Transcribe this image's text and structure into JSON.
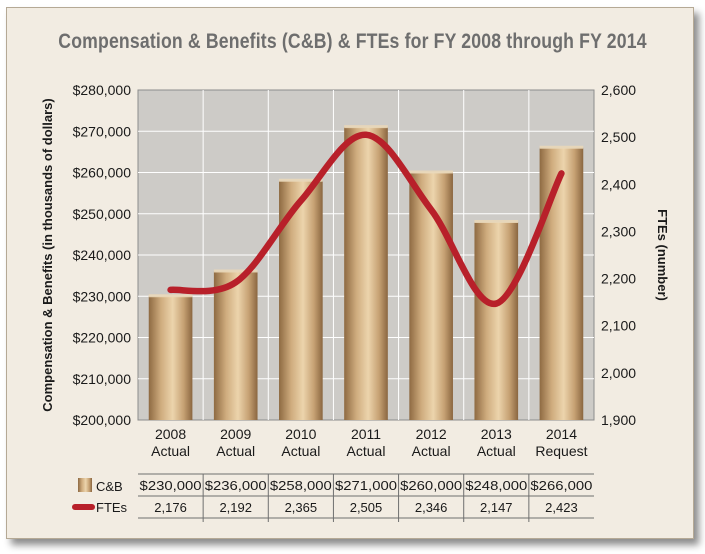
{
  "chart_data": {
    "type": "bar+line",
    "title": "Compensation & Benefits (C&B) & FTEs for FY 2008 through FY 2014",
    "ylabel": "Compensation & Benefits (in thousands of dollars)",
    "y2label": "FTEs (number)",
    "categories": [
      [
        "2008",
        "Actual"
      ],
      [
        "2009",
        "Actual"
      ],
      [
        "2010",
        "Actual"
      ],
      [
        "2011",
        "Actual"
      ],
      [
        "2012",
        "Actual"
      ],
      [
        "2013",
        "Actual"
      ],
      [
        "2014",
        "Request"
      ]
    ],
    "ylim": [
      200000,
      280000
    ],
    "y2lim": [
      1900,
      2600
    ],
    "yticks": [
      "$200,000",
      "$210,000",
      "$220,000",
      "$230,000",
      "$240,000",
      "$250,000",
      "$260,000",
      "$270,000",
      "$280,000"
    ],
    "y2ticks": [
      "1,900",
      "2,000",
      "2,100",
      "2,200",
      "2,300",
      "2,400",
      "2,500",
      "2,600"
    ],
    "series": [
      {
        "name": "C&B",
        "type": "bar",
        "axis": "left",
        "color": "#c8a476",
        "values": [
          230000,
          236000,
          258000,
          271000,
          260000,
          248000,
          266000
        ],
        "labels": [
          "$230,000",
          "$236,000",
          "$258,000",
          "$271,000",
          "$260,000",
          "$248,000",
          "$266,000"
        ]
      },
      {
        "name": "FTEs",
        "type": "line",
        "axis": "right",
        "color": "#b8202a",
        "values": [
          2176,
          2192,
          2365,
          2505,
          2346,
          2147,
          2423
        ],
        "labels": [
          "2,176",
          "2,192",
          "2,365",
          "2,505",
          "2,346",
          "2,147",
          "2,423"
        ]
      }
    ],
    "grid": true,
    "legend": "data-table-bottom"
  }
}
